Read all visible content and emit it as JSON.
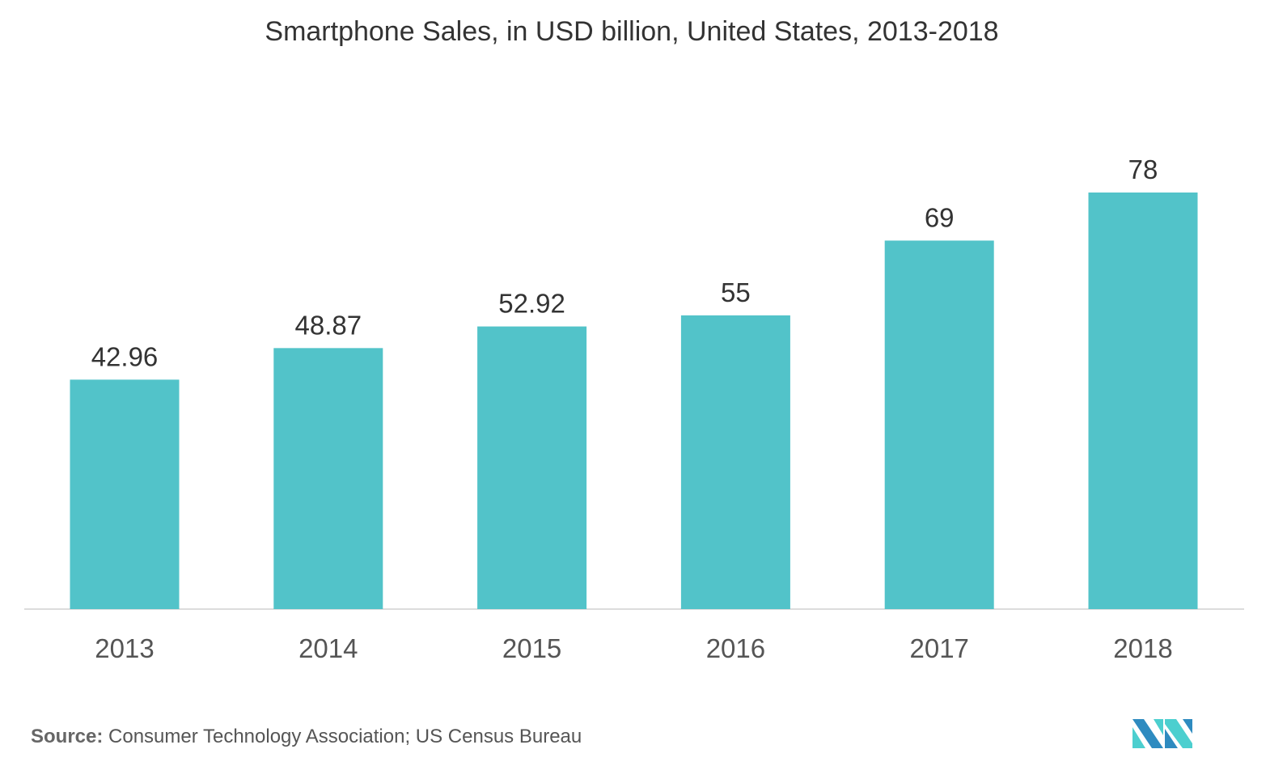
{
  "chart_data": {
    "type": "bar",
    "title": "Smartphone Sales, in USD billion, United States, 2013-2018",
    "categories": [
      "2013",
      "2014",
      "2015",
      "2016",
      "2017",
      "2018"
    ],
    "values": [
      42.96,
      48.87,
      52.92,
      55,
      69,
      78
    ],
    "value_labels": [
      "42.96",
      "48.87",
      "52.92",
      "55",
      "69",
      "78"
    ],
    "xlabel": "",
    "ylabel": "",
    "ylim": [
      0,
      78
    ],
    "grid": false,
    "bar_color": "#52c3c9"
  },
  "source": {
    "label": "Source:",
    "text": " Consumer Technology Association; US Census Bureau"
  },
  "logo": {
    "text": "MN",
    "colors": [
      "#2e8bc0",
      "#4ccfcf"
    ]
  }
}
